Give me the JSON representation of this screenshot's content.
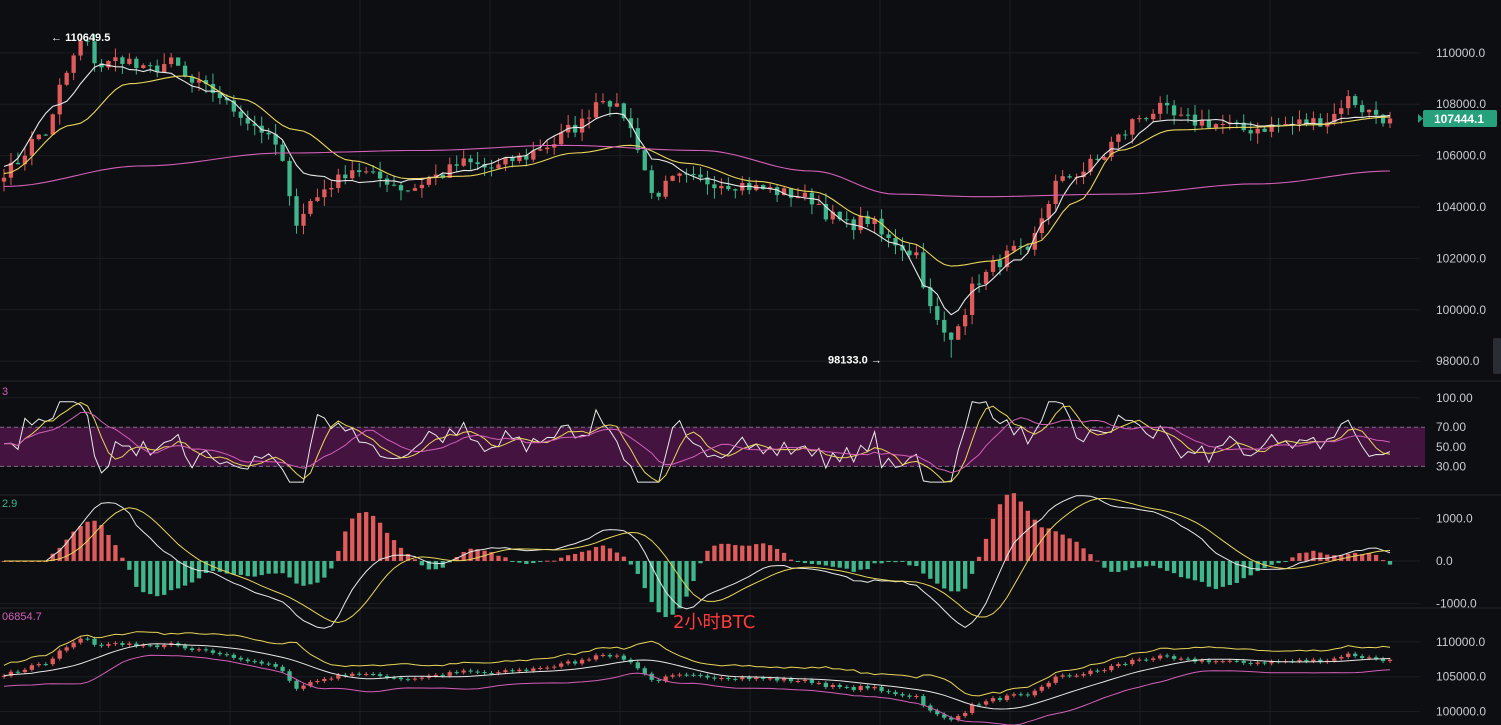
{
  "caption": "2小时BTC",
  "colors": {
    "background": "#0d0e11",
    "up": "#e05c5c",
    "down": "#3fb68b",
    "ma_white": "#e8e8e8",
    "ma_yellow": "#e9d65a",
    "ma_pink": "#d35fb8",
    "rsi_band": "#4a1445",
    "grid": "#1b1d22",
    "price_tag": "#26a17b"
  },
  "chart_data": [
    {
      "type": "candlestick",
      "panel": "main",
      "instrument": "BTC",
      "interval": "2小时",
      "ylim": [
        97500,
        111200
      ],
      "y_ticks": [
        "110000.0",
        "108000.0",
        "106000.0",
        "104000.0",
        "102000.0",
        "100000.0",
        "98000.0"
      ],
      "y_tick_values": [
        110000,
        108000,
        106000,
        104000,
        102000,
        100000,
        98000
      ],
      "last_price": "107444.1",
      "last_price_value": 107444.1,
      "high_label": "110649.5",
      "high_value": 110649.5,
      "low_label": "98133.0",
      "low_value": 98133.0,
      "close_path": [
        [
          0,
          105400
        ],
        [
          6,
          106900
        ],
        [
          9,
          109200
        ],
        [
          11,
          110400
        ],
        [
          14,
          109500
        ],
        [
          17,
          109800
        ],
        [
          20,
          109300
        ],
        [
          24,
          109600
        ],
        [
          27,
          108800
        ],
        [
          30,
          108500
        ],
        [
          33,
          107800
        ],
        [
          36,
          107200
        ],
        [
          39,
          106400
        ],
        [
          42,
          103500
        ],
        [
          44,
          104200
        ],
        [
          47,
          104900
        ],
        [
          50,
          105500
        ],
        [
          54,
          105100
        ],
        [
          58,
          104700
        ],
        [
          62,
          105200
        ],
        [
          66,
          105700
        ],
        [
          70,
          105500
        ],
        [
          74,
          105900
        ],
        [
          78,
          106400
        ],
        [
          82,
          107100
        ],
        [
          86,
          108300
        ],
        [
          89,
          107600
        ],
        [
          91,
          106400
        ],
        [
          93,
          104500
        ],
        [
          97,
          105100
        ],
        [
          101,
          105000
        ],
        [
          105,
          104900
        ],
        [
          109,
          104700
        ],
        [
          113,
          104500
        ],
        [
          116,
          104300
        ],
        [
          119,
          103600
        ],
        [
          121,
          103300
        ],
        [
          124,
          103500
        ],
        [
          127,
          102700
        ],
        [
          131,
          102200
        ],
        [
          133,
          100000
        ],
        [
          135,
          99000
        ],
        [
          137,
          99600
        ],
        [
          140,
          101200
        ],
        [
          143,
          101900
        ],
        [
          145,
          102300
        ],
        [
          147,
          102100
        ],
        [
          149,
          103600
        ],
        [
          151,
          104900
        ],
        [
          154,
          105300
        ],
        [
          157,
          105800
        ],
        [
          160,
          106700
        ],
        [
          163,
          107500
        ],
        [
          166,
          107800
        ],
        [
          169,
          107400
        ],
        [
          172,
          107300
        ],
        [
          175,
          107200
        ],
        [
          178,
          107000
        ],
        [
          181,
          107100
        ],
        [
          184,
          107200
        ],
        [
          187,
          107300
        ],
        [
          190,
          107400
        ],
        [
          193,
          108200
        ],
        [
          196,
          107700
        ],
        [
          199,
          107400
        ]
      ],
      "ma_white_path": [
        [
          0,
          105600
        ],
        [
          8,
          108000
        ],
        [
          14,
          109500
        ],
        [
          22,
          109300
        ],
        [
          30,
          108500
        ],
        [
          38,
          107000
        ],
        [
          44,
          105200
        ],
        [
          50,
          105000
        ],
        [
          58,
          105000
        ],
        [
          66,
          105400
        ],
        [
          74,
          106000
        ],
        [
          82,
          107100
        ],
        [
          88,
          107700
        ],
        [
          94,
          105800
        ],
        [
          100,
          105100
        ],
        [
          108,
          104800
        ],
        [
          116,
          104300
        ],
        [
          122,
          103300
        ],
        [
          128,
          102600
        ],
        [
          133,
          100800
        ],
        [
          136,
          99800
        ],
        [
          140,
          100900
        ],
        [
          146,
          102000
        ],
        [
          150,
          103600
        ],
        [
          154,
          105100
        ],
        [
          160,
          106300
        ],
        [
          166,
          107400
        ],
        [
          172,
          107400
        ],
        [
          180,
          107200
        ],
        [
          188,
          107200
        ],
        [
          194,
          107500
        ],
        [
          199,
          107600
        ]
      ],
      "ma_yellow_path": [
        [
          0,
          105300
        ],
        [
          10,
          107200
        ],
        [
          18,
          108800
        ],
        [
          26,
          109100
        ],
        [
          34,
          108200
        ],
        [
          42,
          107000
        ],
        [
          50,
          105800
        ],
        [
          58,
          105100
        ],
        [
          66,
          105200
        ],
        [
          74,
          105600
        ],
        [
          82,
          106100
        ],
        [
          90,
          106400
        ],
        [
          98,
          105700
        ],
        [
          108,
          105000
        ],
        [
          116,
          104600
        ],
        [
          124,
          103600
        ],
        [
          130,
          102600
        ],
        [
          136,
          101700
        ],
        [
          142,
          101900
        ],
        [
          148,
          102600
        ],
        [
          154,
          104200
        ],
        [
          160,
          106200
        ],
        [
          168,
          107000
        ],
        [
          178,
          107100
        ],
        [
          188,
          107200
        ],
        [
          199,
          107500
        ]
      ],
      "ma_pink_path": [
        [
          0,
          104800
        ],
        [
          20,
          105600
        ],
        [
          40,
          106100
        ],
        [
          60,
          106200
        ],
        [
          80,
          106400
        ],
        [
          100,
          106200
        ],
        [
          116,
          105400
        ],
        [
          128,
          104500
        ],
        [
          140,
          104400
        ],
        [
          160,
          104500
        ],
        [
          180,
          104900
        ],
        [
          199,
          105400
        ]
      ]
    },
    {
      "type": "line",
      "panel": "rsi",
      "ylim": [
        10,
        110
      ],
      "y_ticks": [
        "100.00",
        "70.00",
        "50.00",
        "30.00"
      ],
      "y_tick_values": [
        100,
        70,
        50,
        30
      ],
      "band": [
        30,
        70
      ],
      "corner_label": "3"
    },
    {
      "type": "bar",
      "panel": "macd",
      "ylim": [
        -1150,
        1150
      ],
      "y_ticks": [
        "1000.0",
        "0.0",
        "-1000.0"
      ],
      "y_tick_values": [
        1000,
        0,
        -1000
      ],
      "corner_label": "2.9"
    },
    {
      "type": "line",
      "panel": "bollinger",
      "ylim": [
        98500,
        112000
      ],
      "y_ticks": [
        "110000.0",
        "105000.0",
        "100000.0"
      ],
      "y_tick_values": [
        110000,
        105000,
        100000
      ],
      "corner_label": "06854.7"
    }
  ]
}
